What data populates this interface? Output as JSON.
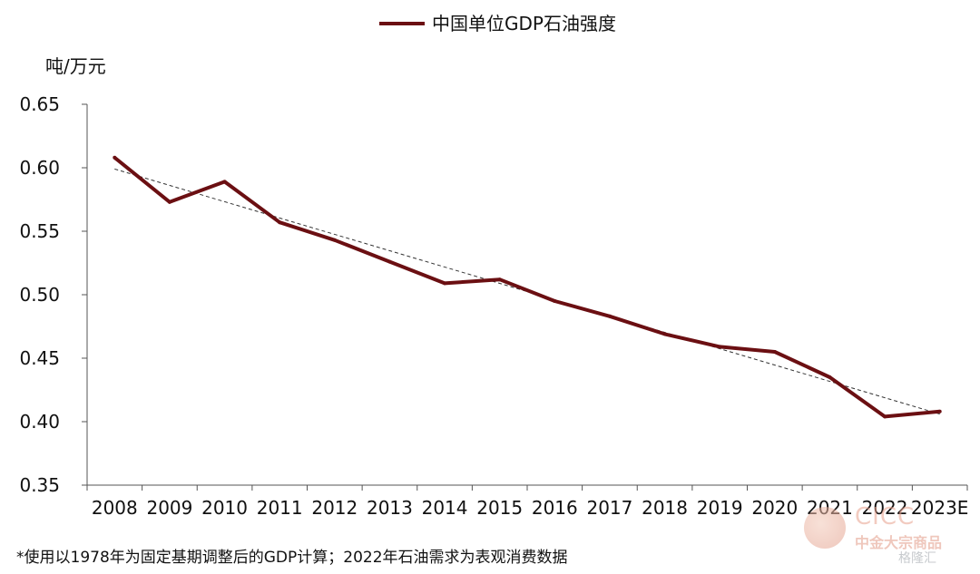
{
  "chart_data": {
    "type": "line",
    "title": "",
    "ylabel": "吨/万元",
    "xlabel": "",
    "ylim": [
      0.35,
      0.65
    ],
    "yticks": [
      "0.35",
      "0.40",
      "0.45",
      "0.50",
      "0.55",
      "0.60",
      "0.65"
    ],
    "categories": [
      "2008",
      "2009",
      "2010",
      "2011",
      "2012",
      "2013",
      "2014",
      "2015",
      "2016",
      "2017",
      "2018",
      "2019",
      "2020",
      "2021",
      "2022",
      "2023E"
    ],
    "series": [
      {
        "name": "中国单位GDP石油强度",
        "color": "#6b0f12",
        "values": [
          0.608,
          0.573,
          0.589,
          0.557,
          0.543,
          0.526,
          0.509,
          0.512,
          0.495,
          0.483,
          0.469,
          0.459,
          0.455,
          0.435,
          0.404,
          0.408
        ]
      }
    ],
    "trendline": {
      "style": "dashed",
      "color": "#333333",
      "start": 0.599,
      "end": 0.406
    },
    "legend_position": "top-center",
    "grid": false
  },
  "footnote": "*使用以1978年为固定基期调整后的GDP计算；2022年石油需求为表观消费数据",
  "watermark": {
    "brand": "CICC",
    "sub": "中金大宗商品",
    "site": "格隆汇"
  }
}
